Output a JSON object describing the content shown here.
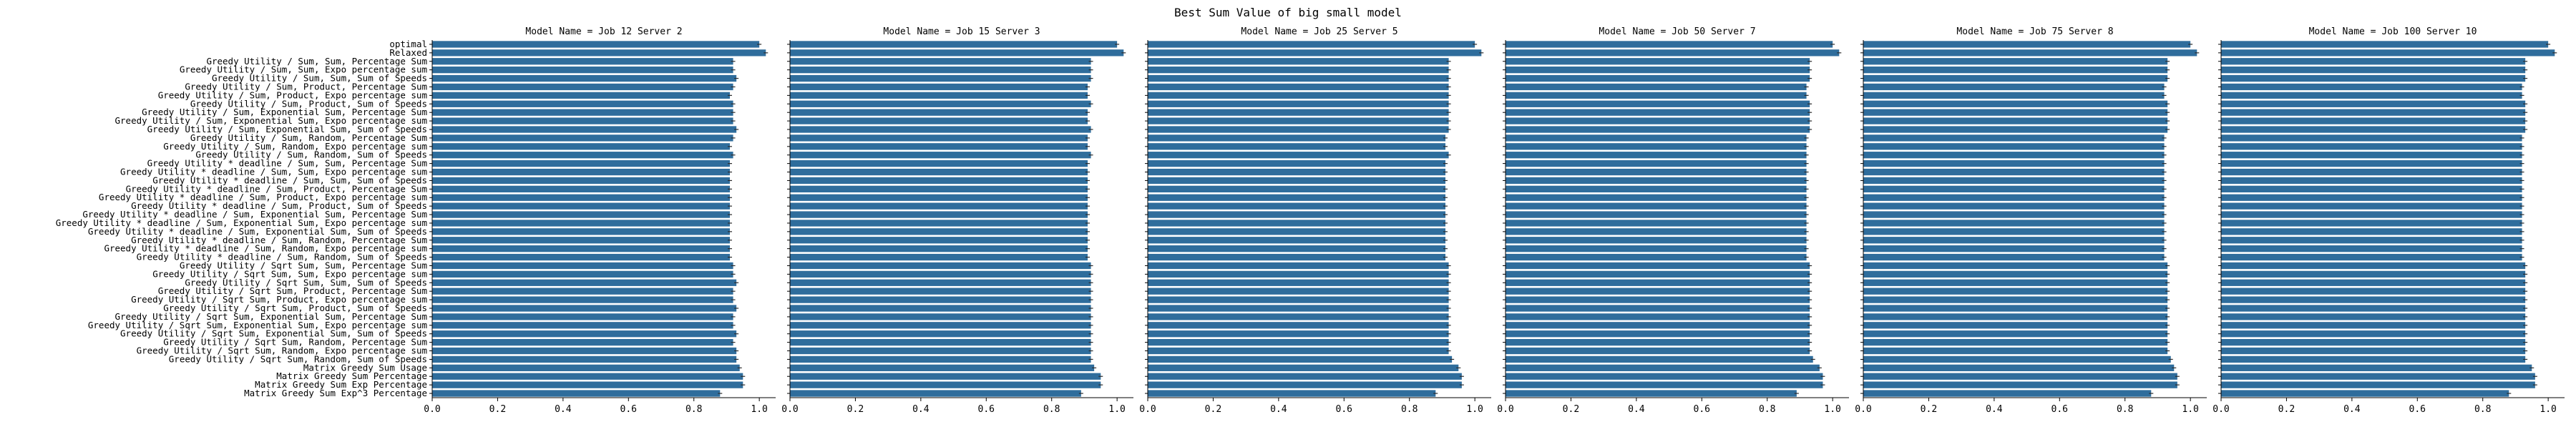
{
  "figure": {
    "suptitle": "Best Sum Value of big small model",
    "bar_color": "#2f6d9c"
  },
  "chart_data": [
    {
      "type": "bar",
      "orientation": "horizontal",
      "title": "Model Name =  Job 12 Server 2",
      "categories": [
        "optimal",
        "Relaxed",
        "Greedy Utility / Sum, Sum, Percentage Sum",
        "Greedy Utility / Sum, Sum, Expo percentage sum",
        "Greedy Utility / Sum, Sum, Sum of Speeds",
        "Greedy Utility / Sum, Product, Percentage Sum",
        "Greedy Utility / Sum, Product, Expo percentage sum",
        "Greedy Utility / Sum, Product, Sum of Speeds",
        "Greedy Utility / Sum, Exponential Sum, Percentage Sum",
        "Greedy Utility / Sum, Exponential Sum, Expo percentage sum",
        "Greedy Utility / Sum, Exponential Sum, Sum of Speeds",
        "Greedy Utility / Sum, Random, Percentage Sum",
        "Greedy Utility / Sum, Random, Expo percentage sum",
        "Greedy Utility / Sum, Random, Sum of Speeds",
        "Greedy Utility * deadline / Sum, Sum, Percentage Sum",
        "Greedy Utility * deadline / Sum, Sum, Expo percentage sum",
        "Greedy Utility * deadline / Sum, Sum, Sum of Speeds",
        "Greedy Utility * deadline / Sum, Product, Percentage Sum",
        "Greedy Utility * deadline / Sum, Product, Expo percentage sum",
        "Greedy Utility * deadline / Sum, Product, Sum of Speeds",
        "Greedy Utility * deadline / Sum, Exponential Sum, Percentage Sum",
        "Greedy Utility * deadline / Sum, Exponential Sum, Expo percentage sum",
        "Greedy Utility * deadline / Sum, Exponential Sum, Sum of Speeds",
        "Greedy Utility * deadline / Sum, Random, Percentage Sum",
        "Greedy Utility * deadline / Sum, Random, Expo percentage sum",
        "Greedy Utility * deadline / Sum, Random, Sum of Speeds",
        "Greedy Utility / Sqrt Sum, Sum, Percentage Sum",
        "Greedy Utility / Sqrt Sum, Sum, Expo percentage sum",
        "Greedy Utility / Sqrt Sum, Sum, Sum of Speeds",
        "Greedy Utility / Sqrt Sum, Product, Percentage Sum",
        "Greedy Utility / Sqrt Sum, Product, Expo percentage sum",
        "Greedy Utility / Sqrt Sum, Product, Sum of Speeds",
        "Greedy Utility / Sqrt Sum, Exponential Sum, Percentage Sum",
        "Greedy Utility / Sqrt Sum, Exponential Sum, Expo percentage sum",
        "Greedy Utility / Sqrt Sum, Exponential Sum, Sum of Speeds",
        "Greedy Utility / Sqrt Sum, Random, Percentage Sum",
        "Greedy Utility / Sqrt Sum, Random, Expo percentage sum",
        "Greedy Utility / Sqrt Sum, Random, Sum of Speeds",
        "Matrix Greedy Sum Usage",
        "Matrix Greedy Sum Percentage",
        "Matrix Greedy Sum Exp Percentage",
        "Matrix Greedy Sum Exp^3 Percentage"
      ],
      "values": [
        1.0,
        1.02,
        0.92,
        0.92,
        0.93,
        0.92,
        0.91,
        0.92,
        0.92,
        0.92,
        0.93,
        0.92,
        0.91,
        0.92,
        0.91,
        0.91,
        0.91,
        0.91,
        0.91,
        0.91,
        0.91,
        0.91,
        0.91,
        0.91,
        0.91,
        0.91,
        0.92,
        0.92,
        0.93,
        0.92,
        0.92,
        0.93,
        0.92,
        0.92,
        0.93,
        0.92,
        0.93,
        0.93,
        0.94,
        0.95,
        0.95,
        0.88
      ],
      "xlim": [
        0,
        1.05
      ],
      "xticks": [
        "0.0",
        "0.2",
        "0.4",
        "0.6",
        "0.8",
        "1.0"
      ],
      "xlabel": "",
      "ylabel": ""
    },
    {
      "type": "bar",
      "orientation": "horizontal",
      "title": "Model Name =  Job 15 Server 3",
      "values": [
        1.0,
        1.02,
        0.92,
        0.92,
        0.92,
        0.91,
        0.91,
        0.92,
        0.91,
        0.91,
        0.92,
        0.91,
        0.91,
        0.92,
        0.91,
        0.91,
        0.91,
        0.91,
        0.91,
        0.91,
        0.91,
        0.91,
        0.91,
        0.91,
        0.91,
        0.91,
        0.92,
        0.92,
        0.92,
        0.92,
        0.92,
        0.92,
        0.92,
        0.92,
        0.92,
        0.92,
        0.92,
        0.92,
        0.93,
        0.95,
        0.95,
        0.89
      ],
      "xlim": [
        0,
        1.05
      ],
      "xticks": [
        "0.0",
        "0.2",
        "0.4",
        "0.6",
        "0.8",
        "1.0"
      ]
    },
    {
      "type": "bar",
      "orientation": "horizontal",
      "title": "Model Name =  Job 25 Server 5",
      "values": [
        1.0,
        1.02,
        0.92,
        0.92,
        0.92,
        0.92,
        0.92,
        0.92,
        0.92,
        0.92,
        0.92,
        0.91,
        0.91,
        0.92,
        0.91,
        0.91,
        0.91,
        0.91,
        0.91,
        0.91,
        0.91,
        0.91,
        0.91,
        0.91,
        0.91,
        0.91,
        0.92,
        0.92,
        0.92,
        0.92,
        0.92,
        0.92,
        0.92,
        0.92,
        0.92,
        0.92,
        0.92,
        0.93,
        0.95,
        0.96,
        0.96,
        0.88
      ],
      "xlim": [
        0,
        1.05
      ],
      "xticks": [
        "0.0",
        "0.2",
        "0.4",
        "0.6",
        "0.8",
        "1.0"
      ]
    },
    {
      "type": "bar",
      "orientation": "horizontal",
      "title": "Model Name =  Job 50 Server 7",
      "values": [
        1.0,
        1.02,
        0.93,
        0.93,
        0.93,
        0.92,
        0.92,
        0.93,
        0.93,
        0.93,
        0.93,
        0.92,
        0.92,
        0.92,
        0.92,
        0.92,
        0.92,
        0.92,
        0.92,
        0.92,
        0.92,
        0.92,
        0.92,
        0.92,
        0.92,
        0.92,
        0.93,
        0.93,
        0.93,
        0.93,
        0.93,
        0.93,
        0.93,
        0.93,
        0.93,
        0.93,
        0.93,
        0.94,
        0.96,
        0.97,
        0.97,
        0.89
      ],
      "xlim": [
        0,
        1.05
      ],
      "xticks": [
        "0.0",
        "0.2",
        "0.4",
        "0.6",
        "0.8",
        "1.0"
      ]
    },
    {
      "type": "bar",
      "orientation": "horizontal",
      "title": "Model Name =  Job 75 Server 8",
      "values": [
        1.0,
        1.02,
        0.93,
        0.93,
        0.93,
        0.92,
        0.92,
        0.93,
        0.93,
        0.93,
        0.93,
        0.92,
        0.92,
        0.92,
        0.92,
        0.92,
        0.92,
        0.92,
        0.92,
        0.92,
        0.92,
        0.92,
        0.92,
        0.92,
        0.92,
        0.92,
        0.93,
        0.93,
        0.93,
        0.93,
        0.93,
        0.93,
        0.93,
        0.93,
        0.93,
        0.93,
        0.93,
        0.94,
        0.95,
        0.96,
        0.96,
        0.88
      ],
      "xlim": [
        0,
        1.05
      ],
      "xticks": [
        "0.0",
        "0.2",
        "0.4",
        "0.6",
        "0.8",
        "1.0"
      ]
    },
    {
      "type": "bar",
      "orientation": "horizontal",
      "title": "Model Name =  Job 100 Server 10",
      "values": [
        1.0,
        1.02,
        0.93,
        0.93,
        0.93,
        0.92,
        0.92,
        0.93,
        0.93,
        0.93,
        0.93,
        0.92,
        0.92,
        0.92,
        0.92,
        0.92,
        0.92,
        0.92,
        0.92,
        0.92,
        0.92,
        0.92,
        0.92,
        0.92,
        0.92,
        0.92,
        0.93,
        0.93,
        0.93,
        0.93,
        0.93,
        0.93,
        0.93,
        0.93,
        0.93,
        0.93,
        0.93,
        0.93,
        0.95,
        0.96,
        0.96,
        0.88
      ],
      "xlim": [
        0,
        1.05
      ],
      "xticks": [
        "0.0",
        "0.2",
        "0.4",
        "0.6",
        "0.8",
        "1.0"
      ]
    }
  ]
}
